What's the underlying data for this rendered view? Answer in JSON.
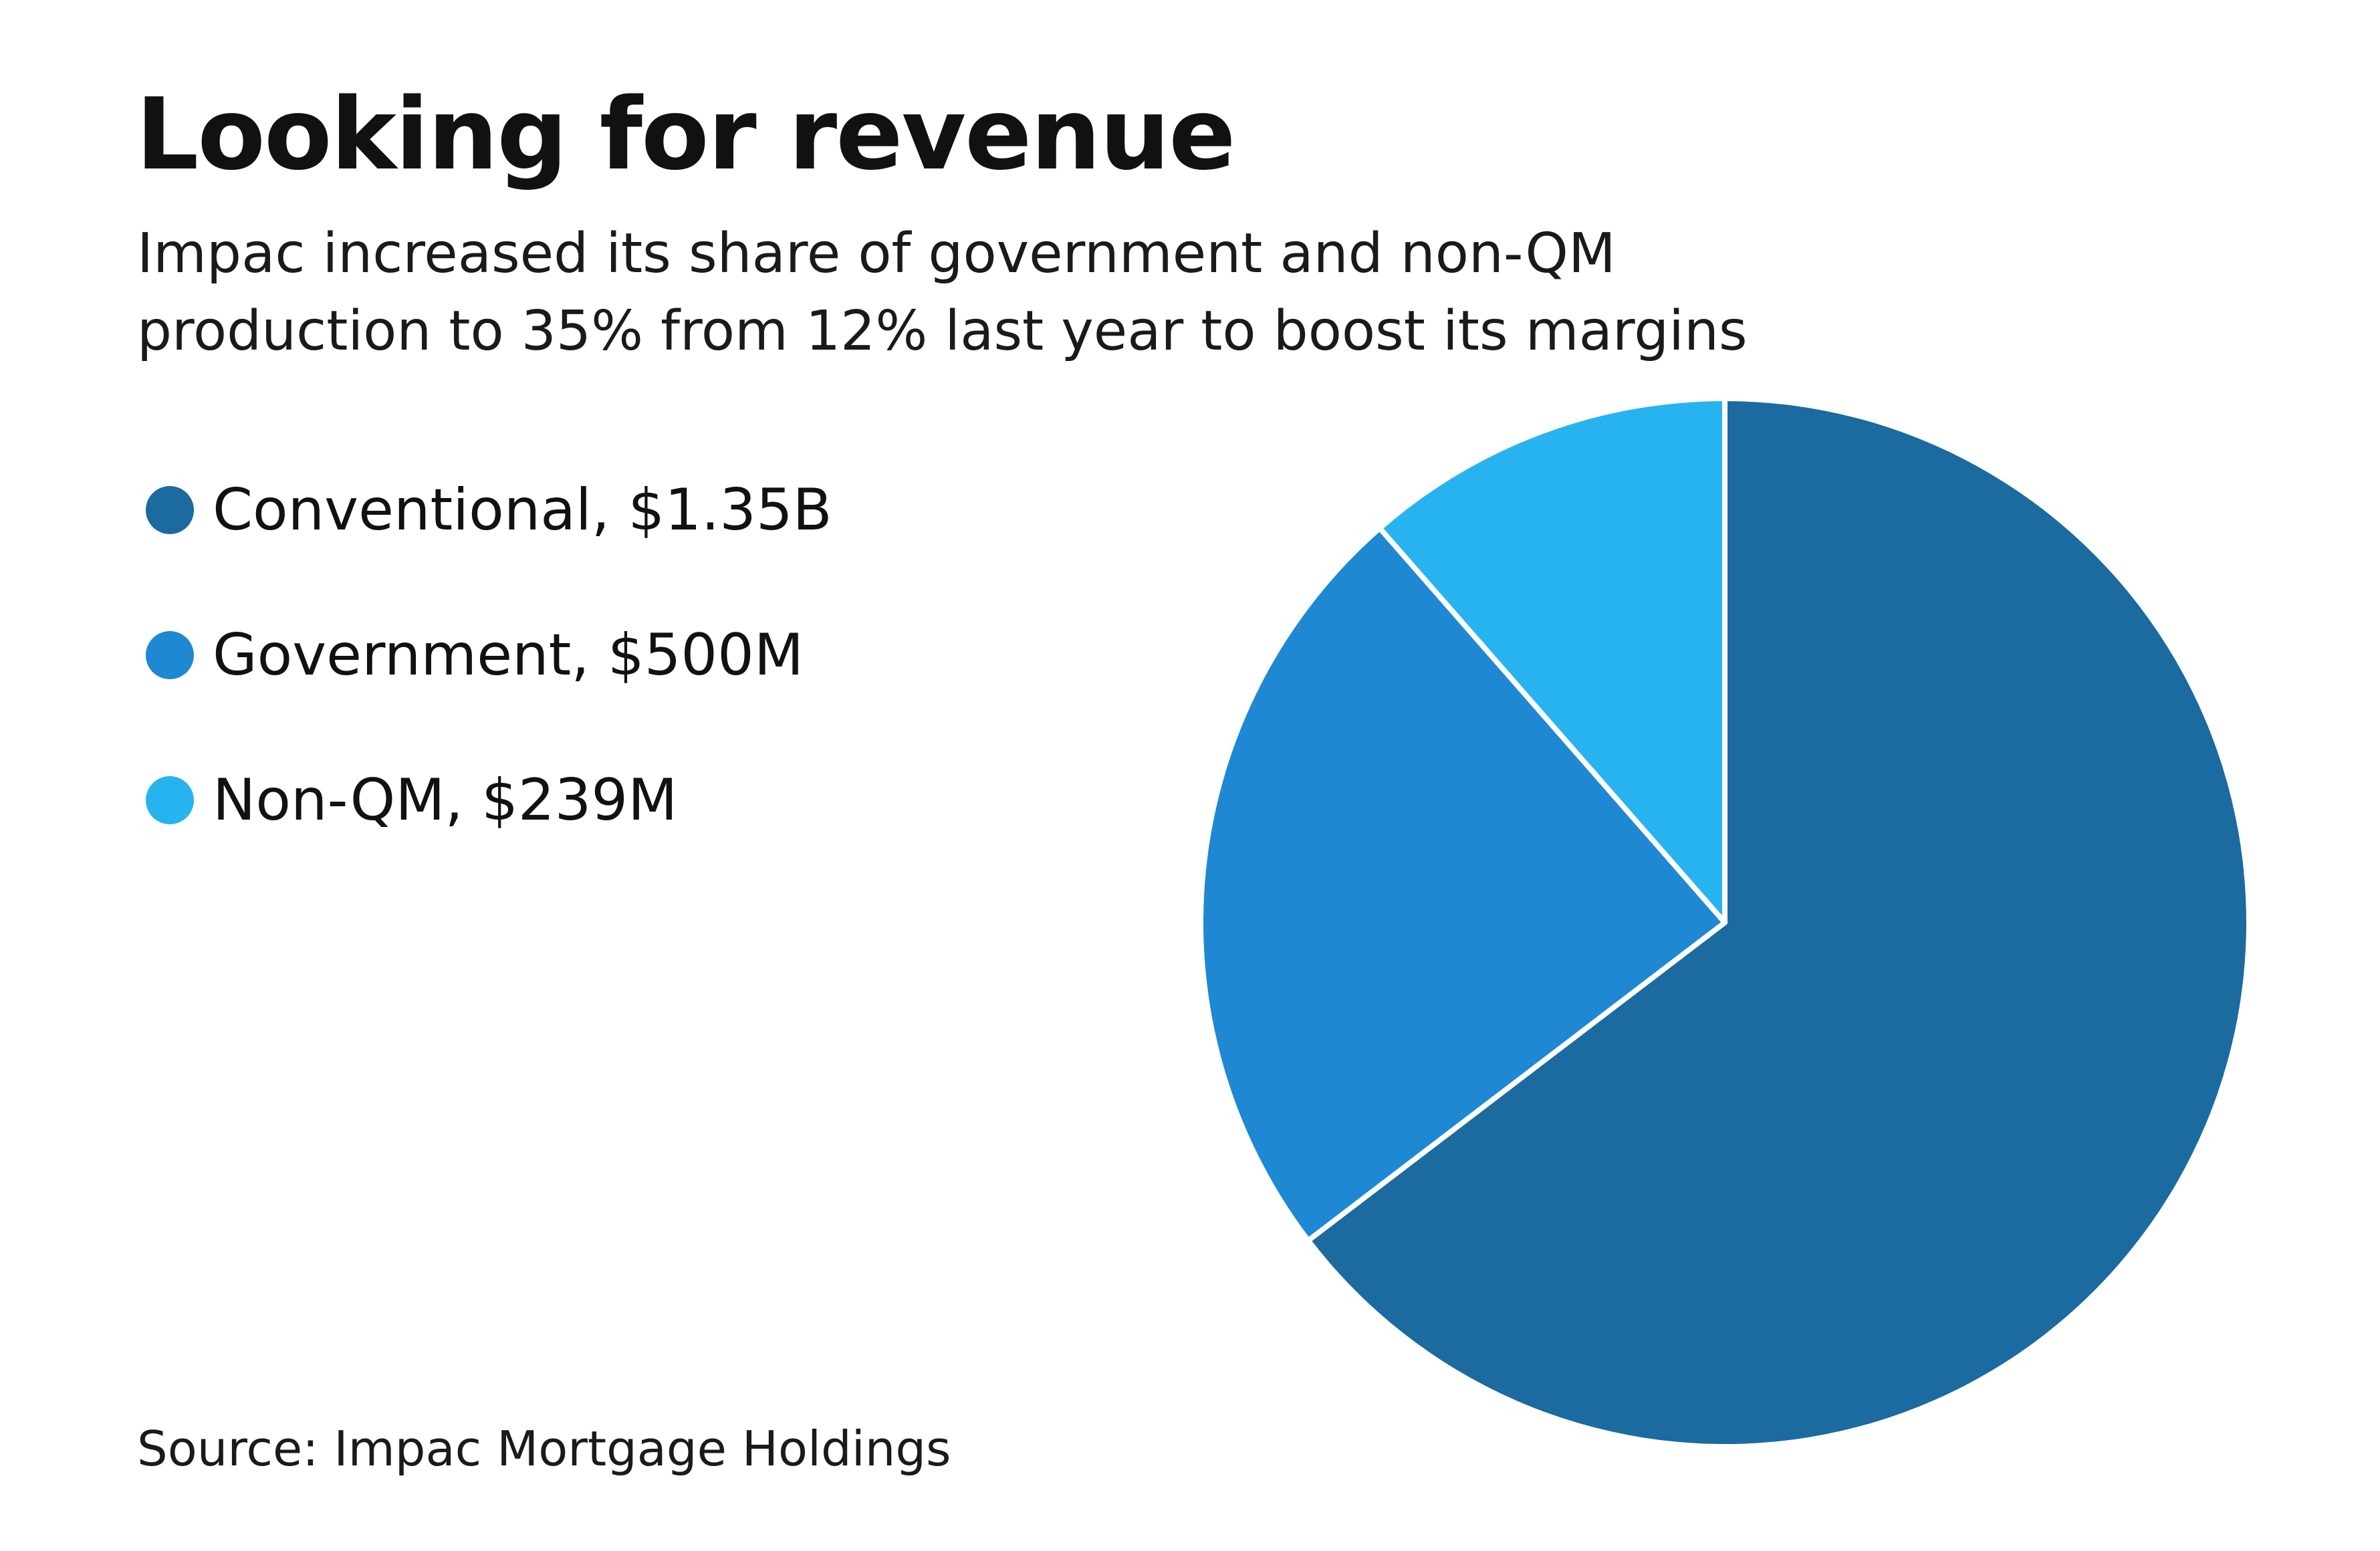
{
  "header": {
    "title": "Looking for revenue",
    "subtitle_lines": [
      "Impac increased its share of government and non-QM",
      "production to 35% from 12% last year to boost its margins"
    ]
  },
  "legend": {
    "items": [
      {
        "label": "Conventional, $1.35B",
        "color": "#1b6aa0"
      },
      {
        "label": "Government, $500M",
        "color": "#1e88d2"
      },
      {
        "label": "Non-QM, $239M",
        "color": "#27b3ef"
      }
    ]
  },
  "source": "Source: Impac Mortgage Holdings",
  "chart_data": {
    "type": "pie",
    "title": "Looking for revenue",
    "subtitle": "Impac increased its share of government and non-QM production to 35% from 12% last year to boost its margins",
    "categories": [
      "Conventional",
      "Government",
      "Non-QM"
    ],
    "values": [
      1350,
      500,
      239
    ],
    "unit": "$M",
    "labels": [
      "Conventional, $1.35B",
      "Government, $500M",
      "Non-QM, $239M"
    ],
    "colors": [
      "#1b6aa0",
      "#1e88d2",
      "#27b3ef"
    ],
    "start_angle": "12 o'clock",
    "direction": "clockwise",
    "legend_position": "left",
    "source": "Source: Impac Mortgage Holdings"
  }
}
